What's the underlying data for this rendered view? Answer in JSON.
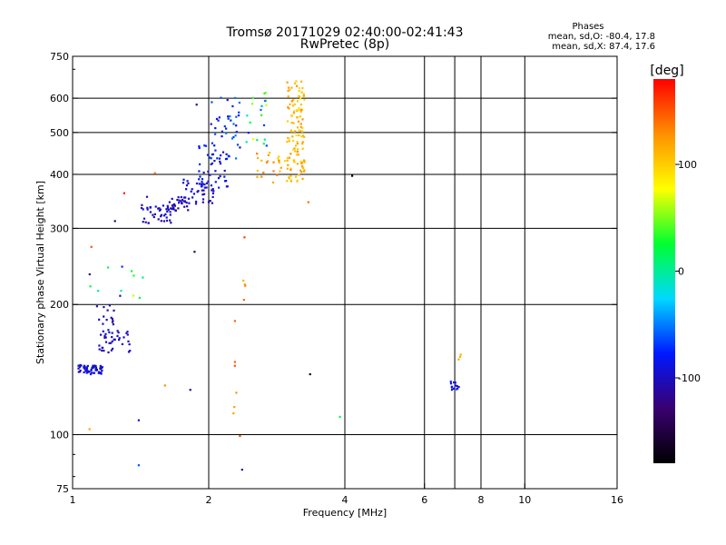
{
  "chart_data": {
    "type": "scatter",
    "title": "Tromsø 20171029 02:40:00-02:41:43",
    "subtitle": "RwPretec (8p)",
    "xlabel": "Frequency [MHz]",
    "ylabel": "Stationary phase Virtual Height [km]",
    "xscale": "log2",
    "yscale": "log",
    "xlim": [
      1,
      16
    ],
    "ylim": [
      75,
      750
    ],
    "xticks": [
      1,
      2,
      4,
      6,
      8,
      10,
      16
    ],
    "yticks": [
      75,
      100,
      200,
      300,
      400,
      500,
      600,
      750
    ],
    "x_gridlines": [
      2,
      4,
      6,
      7,
      8,
      10
    ],
    "y_gridlines": [
      100,
      200,
      300,
      400,
      500,
      600
    ],
    "grid": true,
    "phases_box": {
      "title": "Phases",
      "line_o": "mean, sd,O: -80.4, 17.8",
      "line_x": "mean, sd,X:  87.4, 17.6"
    },
    "colorbar": {
      "label": "[deg]",
      "range": [
        -180,
        180
      ],
      "ticks": [
        -100,
        0,
        100
      ],
      "colors": [
        "#000000",
        "#3a0070",
        "#0018ff",
        "#00d8ff",
        "#00ff30",
        "#ffff00",
        "#ff9000",
        "#ff0000"
      ]
    },
    "series": [
      {
        "clusters": [
          {
            "x": [
              1.03,
              1.17
            ],
            "y": [
              138,
              145
            ],
            "n": 55,
            "phase": [
              -105,
              -85
            ]
          },
          {
            "x": [
              1.14,
              1.34
            ],
            "y": [
              155,
              175
            ],
            "n": 40,
            "phase": [
              -110,
              -95
            ]
          },
          {
            "x": [
              1.12,
              1.24
            ],
            "y": [
              180,
              200
            ],
            "n": 14,
            "phase": [
              -115,
              -95
            ]
          },
          {
            "x": [
              1.05,
              1.45
            ],
            "y": [
              205,
              255
            ],
            "n": 12,
            "phase": [
              -120,
              80
            ]
          },
          {
            "x": [
              1.42,
              1.7
            ],
            "y": [
              308,
              340
            ],
            "n": 45,
            "phase": [
              -112,
              -92
            ]
          },
          {
            "x": [
              1.6,
              1.8
            ],
            "y": [
              330,
              355
            ],
            "n": 25,
            "phase": [
              -112,
              -90
            ]
          },
          {
            "x": [
              1.75,
              2.05
            ],
            "y": [
              340,
              390
            ],
            "n": 40,
            "phase": [
              -108,
              -85
            ]
          },
          {
            "x": [
              1.9,
              2.22
            ],
            "y": [
              370,
              470
            ],
            "n": 45,
            "phase": [
              -100,
              -70
            ]
          },
          {
            "x": [
              2.02,
              2.35
            ],
            "y": [
              430,
              610
            ],
            "n": 40,
            "phase": [
              -95,
              -45
            ]
          },
          {
            "x": [
              2.4,
              2.7
            ],
            "y": [
              460,
              650
            ],
            "n": 20,
            "phase": [
              -90,
              100
            ]
          },
          {
            "x": [
              2.55,
              3.0
            ],
            "y": [
              380,
              450
            ],
            "n": 25,
            "phase": [
              95,
              140
            ]
          },
          {
            "x": [
              2.98,
              3.26
            ],
            "y": [
              385,
              660
            ],
            "n": 120,
            "phase": [
              90,
              130
            ]
          },
          {
            "x": [
              2.25,
              2.42
            ],
            "y": [
              90,
              300
            ],
            "n": 12,
            "phase": [
              110,
              160
            ]
          },
          {
            "x": [
              6.8,
              7.15
            ],
            "y": [
              127,
              133
            ],
            "n": 14,
            "phase": [
              -100,
              -70
            ]
          },
          {
            "x": [
              7.05,
              7.25
            ],
            "y": [
              145,
              175
            ],
            "n": 3,
            "phase": [
              100,
              120
            ]
          }
        ],
        "points": [
          {
            "x": 1.09,
            "y": 103,
            "phase": 120
          },
          {
            "x": 1.4,
            "y": 108,
            "phase": -80
          },
          {
            "x": 1.4,
            "y": 85,
            "phase": -60
          },
          {
            "x": 1.6,
            "y": 130,
            "phase": 130
          },
          {
            "x": 1.82,
            "y": 127,
            "phase": -110
          },
          {
            "x": 2.37,
            "y": 83,
            "phase": -125
          },
          {
            "x": 3.35,
            "y": 138,
            "phase": -170
          },
          {
            "x": 3.9,
            "y": 110,
            "phase": 20
          },
          {
            "x": 4.15,
            "y": 397,
            "phase": -170
          },
          {
            "x": 3.32,
            "y": 345,
            "phase": 140
          },
          {
            "x": 1.1,
            "y": 272,
            "phase": 150
          },
          {
            "x": 1.3,
            "y": 362,
            "phase": 170
          },
          {
            "x": 1.24,
            "y": 312,
            "phase": -130
          },
          {
            "x": 1.88,
            "y": 580,
            "phase": -110
          },
          {
            "x": 1.86,
            "y": 265,
            "phase": -140
          },
          {
            "x": 1.52,
            "y": 403,
            "phase": 130
          },
          {
            "x": 1.46,
            "y": 355,
            "phase": -100
          }
        ]
      }
    ]
  }
}
